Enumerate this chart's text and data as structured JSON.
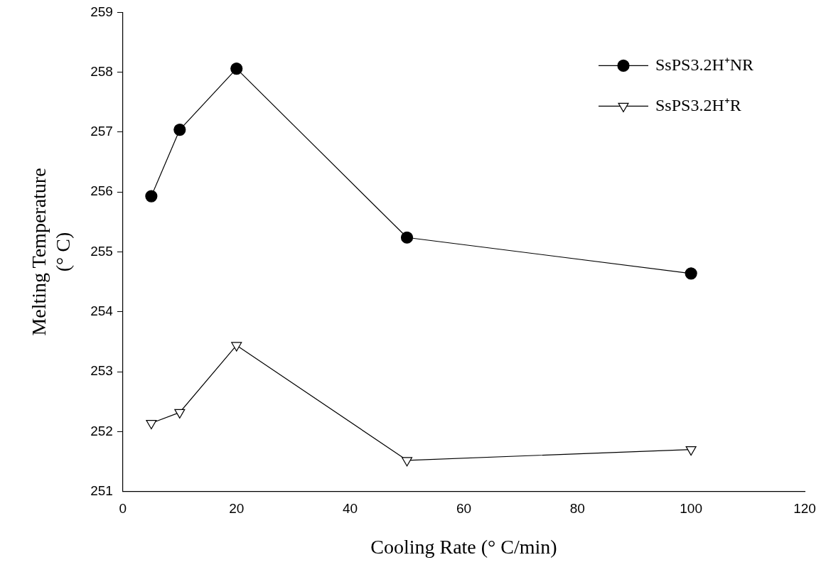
{
  "chart_data": {
    "type": "line",
    "xlabel": "Cooling Rate (° C/min)",
    "ylabel": "Melting Temperature\n(° C)",
    "xlim": [
      0,
      120
    ],
    "xticks": [
      0,
      20,
      40,
      60,
      80,
      100,
      120
    ],
    "ylim": [
      251,
      259
    ],
    "yticks": [
      251,
      252,
      253,
      254,
      255,
      256,
      257,
      258,
      259
    ],
    "x": [
      5,
      10,
      20,
      50,
      100
    ],
    "grid": false,
    "legend": "top right",
    "line_style": "solid",
    "series": [
      {
        "name": "SsPS3.2H⁺NR",
        "color": "#000000",
        "marker": "circle",
        "values": [
          255.93,
          257.04,
          258.06,
          255.24,
          254.64
        ]
      },
      {
        "name": "SsPS3.2H⁺R",
        "color": "#000000",
        "marker": "triangle",
        "values": [
          252.14,
          252.32,
          253.44,
          251.52,
          251.7
        ]
      }
    ]
  }
}
